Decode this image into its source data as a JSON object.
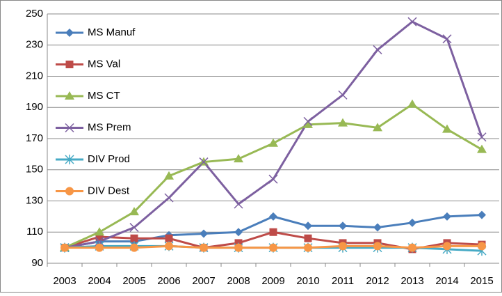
{
  "chart_data": {
    "type": "line",
    "categories": [
      "2003",
      "2004",
      "2005",
      "2006",
      "2007",
      "2008",
      "2009",
      "2010",
      "2011",
      "2012",
      "2013",
      "2014",
      "2015"
    ],
    "ylim": [
      90,
      250
    ],
    "yticks": [
      90,
      110,
      130,
      150,
      170,
      190,
      210,
      230,
      250
    ],
    "grid": true,
    "legend": "upper-left",
    "series": [
      {
        "name": "MS Manuf",
        "color": "#4a7ebb",
        "marker": "diamond",
        "values": [
          100,
          104,
          104,
          108,
          109,
          110,
          120,
          114,
          114,
          113,
          116,
          120,
          121
        ]
      },
      {
        "name": "MS Val",
        "color": "#be4b48",
        "marker": "square",
        "values": [
          100,
          107,
          106,
          106,
          100,
          103,
          110,
          106,
          103,
          103,
          99,
          103,
          102
        ]
      },
      {
        "name": "MS CT",
        "color": "#98b954",
        "marker": "triangle",
        "values": [
          100,
          110,
          123,
          146,
          155,
          157,
          167,
          179,
          180,
          177,
          192,
          176,
          163
        ]
      },
      {
        "name": "MS Prem",
        "color": "#7d60a0",
        "marker": "cross",
        "values": [
          100,
          104,
          113,
          132,
          155,
          128,
          144,
          181,
          198,
          227,
          245,
          234,
          171
        ]
      },
      {
        "name": "DIV Prod",
        "color": "#46aac5",
        "marker": "star",
        "values": [
          100,
          101,
          101,
          101,
          100,
          100,
          100,
          100,
          100,
          100,
          100,
          99,
          98
        ]
      },
      {
        "name": "DIV Dest",
        "color": "#f79646",
        "marker": "circle",
        "values": [
          100,
          100,
          100,
          101,
          100,
          100,
          100,
          100,
          101,
          101,
          100,
          101,
          101
        ]
      }
    ]
  }
}
